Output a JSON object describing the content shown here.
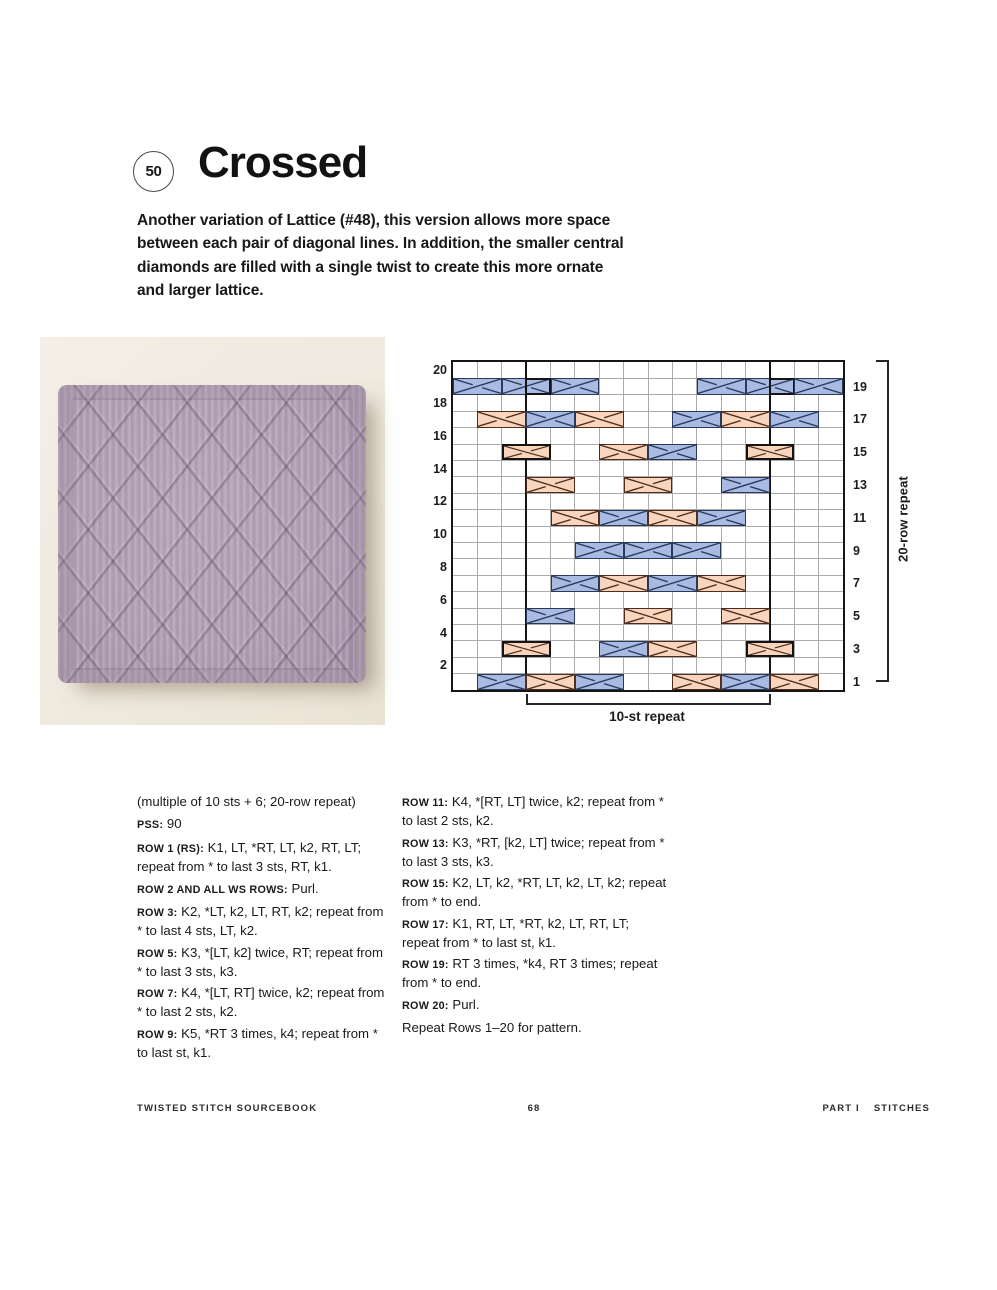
{
  "header": {
    "number": "50",
    "title": "Crossed",
    "intro_lines": [
      "Another variation of Lattice (#48), this version allows more space",
      "between each pair of diagonal lines. In addition, the smaller central",
      "diamonds are filled with a single twist to create this more ornate",
      "and larger lattice."
    ]
  },
  "photo": {
    "background": "#f0ebe2",
    "yarn_color": "#b2a0b4"
  },
  "chart": {
    "columns": 16,
    "rows": 20,
    "repeat_start_col": 4,
    "repeat_end_col": 13,
    "left_row_labels": [
      "20",
      "18",
      "16",
      "14",
      "12",
      "10",
      "8",
      "6",
      "4",
      "2"
    ],
    "right_row_labels": [
      "19",
      "17",
      "15",
      "13",
      "11",
      "9",
      "7",
      "5",
      "3",
      "1"
    ],
    "row_repeat_label": "20-row repeat",
    "stitch_repeat_label": "10-st repeat",
    "colors": {
      "rt_fill": "#a9bae3",
      "rt_line": "#2c3a5a",
      "lt_fill": "#fad5bd",
      "lt_line": "#4f2d1e",
      "grid": "#ababab",
      "frame": "#151515"
    },
    "symbols": [
      {
        "row": 1,
        "col": 2,
        "type": "RT"
      },
      {
        "row": 1,
        "col": 4,
        "type": "LT"
      },
      {
        "row": 1,
        "col": 6,
        "type": "RT"
      },
      {
        "row": 1,
        "col": 10,
        "type": "LT"
      },
      {
        "row": 1,
        "col": 12,
        "type": "RT"
      },
      {
        "row": 1,
        "col": 14,
        "type": "LT"
      },
      {
        "row": 3,
        "col": 3,
        "type": "LT",
        "bold": "full"
      },
      {
        "row": 3,
        "col": 7,
        "type": "RT"
      },
      {
        "row": 3,
        "col": 9,
        "type": "LT"
      },
      {
        "row": 3,
        "col": 13,
        "type": "LT",
        "bold": "full"
      },
      {
        "row": 5,
        "col": 4,
        "type": "RT"
      },
      {
        "row": 5,
        "col": 8,
        "type": "LT"
      },
      {
        "row": 5,
        "col": 12,
        "type": "LT"
      },
      {
        "row": 7,
        "col": 5,
        "type": "RT"
      },
      {
        "row": 7,
        "col": 7,
        "type": "LT"
      },
      {
        "row": 7,
        "col": 9,
        "type": "RT"
      },
      {
        "row": 7,
        "col": 11,
        "type": "LT"
      },
      {
        "row": 9,
        "col": 6,
        "type": "RT"
      },
      {
        "row": 9,
        "col": 8,
        "type": "RT"
      },
      {
        "row": 9,
        "col": 10,
        "type": "RT"
      },
      {
        "row": 11,
        "col": 5,
        "type": "LT"
      },
      {
        "row": 11,
        "col": 7,
        "type": "RT"
      },
      {
        "row": 11,
        "col": 9,
        "type": "LT"
      },
      {
        "row": 11,
        "col": 11,
        "type": "RT"
      },
      {
        "row": 13,
        "col": 4,
        "type": "LT"
      },
      {
        "row": 13,
        "col": 8,
        "type": "LT"
      },
      {
        "row": 13,
        "col": 12,
        "type": "RT"
      },
      {
        "row": 15,
        "col": 3,
        "type": "LT",
        "bold": "full"
      },
      {
        "row": 15,
        "col": 7,
        "type": "LT"
      },
      {
        "row": 15,
        "col": 9,
        "type": "RT"
      },
      {
        "row": 15,
        "col": 13,
        "type": "LT",
        "bold": "full"
      },
      {
        "row": 17,
        "col": 2,
        "type": "LT"
      },
      {
        "row": 17,
        "col": 4,
        "type": "RT"
      },
      {
        "row": 17,
        "col": 6,
        "type": "LT"
      },
      {
        "row": 17,
        "col": 10,
        "type": "RT"
      },
      {
        "row": 17,
        "col": 12,
        "type": "LT"
      },
      {
        "row": 17,
        "col": 14,
        "type": "RT"
      },
      {
        "row": 19,
        "col": 1,
        "type": "RT"
      },
      {
        "row": 19,
        "col": 3,
        "type": "RT",
        "bold": "right"
      },
      {
        "row": 19,
        "col": 5,
        "type": "RT"
      },
      {
        "row": 19,
        "col": 11,
        "type": "RT"
      },
      {
        "row": 19,
        "col": 13,
        "type": "RT",
        "bold": "right"
      },
      {
        "row": 19,
        "col": 15,
        "type": "RT"
      }
    ]
  },
  "instructions": {
    "stitch_note": "(multiple of 10 sts + 6; 20-row repeat)",
    "pss_label": "PSS:",
    "pss_value": "90",
    "left_column": [
      {
        "label": "ROW 1 (RS):",
        "text": "K1, LT, *RT, LT, k2, RT, LT; repeat from * to last 3 sts, RT, k1."
      },
      {
        "label": "ROW 2 AND ALL WS ROWS:",
        "text": "Purl."
      },
      {
        "label": "ROW 3:",
        "text": "K2, *LT, k2, LT, RT, k2; repeat from * to last 4 sts, LT, k2."
      },
      {
        "label": "ROW 5:",
        "text": "K3, *[LT, k2] twice, RT; repeat from * to last 3 sts, k3."
      },
      {
        "label": "ROW 7:",
        "text": "K4, *[LT, RT] twice, k2; repeat from * to last 2 sts, k2."
      },
      {
        "label": "ROW 9:",
        "text": "K5, *RT 3 times, k4; repeat from * to last st, k1."
      }
    ],
    "right_column": [
      {
        "label": "ROW 11:",
        "text": "K4, *[RT, LT] twice, k2; repeat from * to last 2 sts, k2."
      },
      {
        "label": "ROW 13:",
        "text": "K3, *RT, [k2, LT] twice; repeat from * to last 3 sts, k3."
      },
      {
        "label": "ROW 15:",
        "text": "K2, LT, k2, *RT, LT, k2, LT, k2; repeat from * to end."
      },
      {
        "label": "ROW 17:",
        "text": "K1, RT, LT, *RT, k2, LT, RT, LT; repeat from * to last st, k1."
      },
      {
        "label": "ROW 19:",
        "text": "RT 3 times, *k4, RT 3 times; repeat from * to end."
      },
      {
        "label": "ROW 20:",
        "text": "Purl."
      },
      {
        "label": "",
        "text": "Repeat Rows 1–20 for pattern."
      }
    ]
  },
  "footer": {
    "left": "TWISTED STITCH SOURCEBOOK",
    "page_number": "68",
    "right_part": "PART I",
    "right_section": "STITCHES"
  }
}
